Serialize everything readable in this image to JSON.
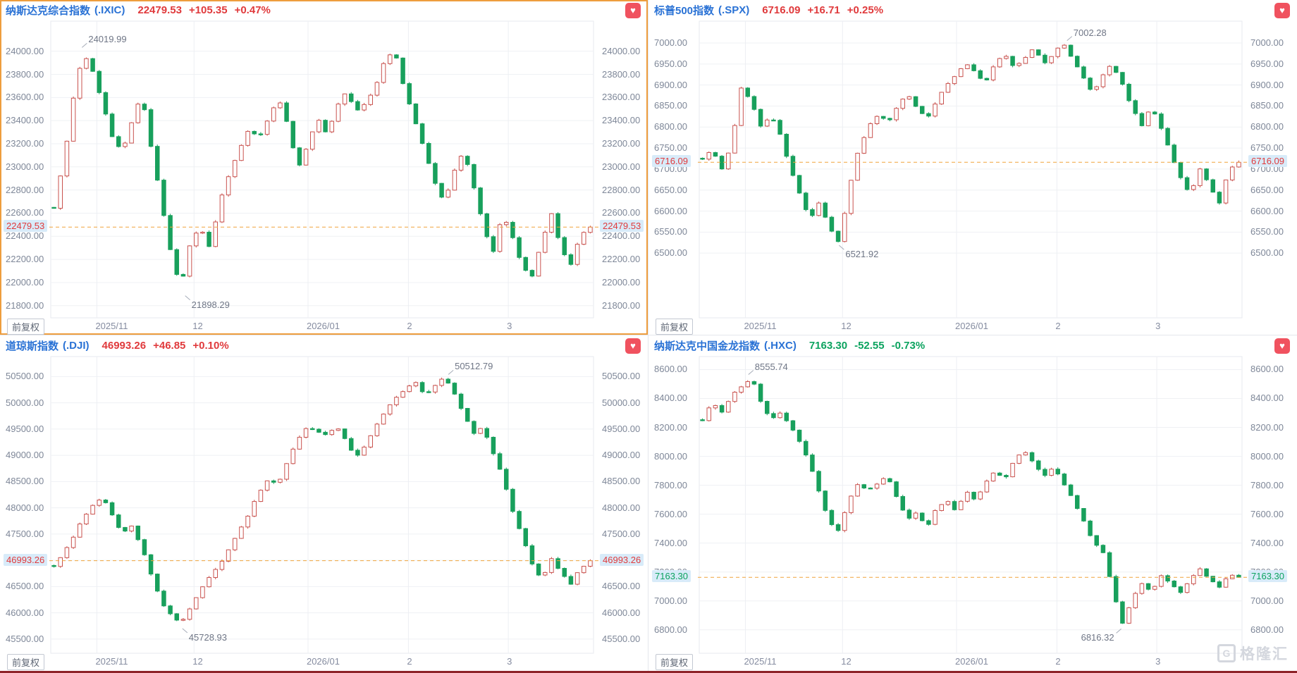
{
  "app": {
    "adjust_label": "前复权",
    "favorite_icon_glyph": "♥",
    "watermark": {
      "logo_letter": "G",
      "text": "格隆汇"
    }
  },
  "colors": {
    "title_blue": "#2A72D5",
    "up_red": "#E03A3C",
    "down_green": "#0CA35F",
    "candle_up_outline": "#C9524E",
    "candle_down_fill": "#18A05C",
    "dashed_line_orange": "#F0A43C",
    "tag_background": "#D8EBF9",
    "selected_border_orange": "#EE9D3D",
    "axis_label_gray": "#7E8798",
    "heart_button": "#F0525F",
    "bottom_strip": "#8E2329"
  },
  "panels": [
    {
      "title": "纳斯达克综合指数",
      "code": "(.IXIC)",
      "price": "22479.53",
      "change": "+105.35",
      "change_pct": "+0.47%",
      "direction": "up"
    },
    {
      "title": "标普500指数",
      "code": "(.SPX)",
      "price": "6716.09",
      "change": "+16.71",
      "change_pct": "+0.25%",
      "direction": "up"
    },
    {
      "title": "道琼斯指数",
      "code": "(.DJI)",
      "price": "46993.26",
      "change": "+46.85",
      "change_pct": "+0.10%",
      "direction": "up"
    },
    {
      "title": "纳斯达克中国金龙指数",
      "code": "(.HXC)",
      "price": "7163.30",
      "change": "-52.55",
      "change_pct": "-0.73%",
      "direction": "down"
    }
  ],
  "chart_data": [
    {
      "name": "纳斯达克综合指数",
      "symbol": ".IXIC",
      "type": "candlestick",
      "adjust": "前复权",
      "last": 22479.53,
      "y_axis": {
        "top_value": 24260,
        "bottom_value": 21695,
        "tick_step": 200,
        "ticks": [
          24000,
          23800,
          23600,
          23400,
          23200,
          23000,
          22800,
          22600,
          22400,
          22200,
          22000,
          21800
        ]
      },
      "x_ticks": [
        {
          "label": "2025/11",
          "fx": 0.085
        },
        {
          "label": "12",
          "fx": 0.264
        },
        {
          "label": "2026/01",
          "fx": 0.474
        },
        {
          "label": "2",
          "fx": 0.659
        },
        {
          "label": "3",
          "fx": 0.843
        }
      ],
      "annotations": [
        {
          "label": "24019.99",
          "value": 24019.99,
          "fx": 0.055,
          "kind": "high",
          "side": "right"
        },
        {
          "label": "21898.29",
          "value": 21898.29,
          "fx": 0.245,
          "kind": "low",
          "side": "right"
        }
      ],
      "closes_approx": [
        22650,
        23050,
        23600,
        23990,
        23820,
        23550,
        23250,
        23120,
        23400,
        23620,
        23150,
        22700,
        22250,
        21950,
        22350,
        22480,
        22300,
        22700,
        22950,
        23150,
        23320,
        23250,
        23420,
        23600,
        23350,
        22980,
        23180,
        23420,
        23280,
        23520,
        23650,
        23480,
        23560,
        23700,
        23950,
        23980,
        23650,
        23400,
        23150,
        22880,
        22700,
        22950,
        23150,
        22850,
        22500,
        22250,
        22600,
        22400,
        22150,
        22050,
        22350,
        22600,
        22300,
        22150,
        22420,
        22479.53
      ]
    },
    {
      "name": "标普500指数",
      "symbol": ".SPX",
      "type": "candlestick",
      "adjust": "前复权",
      "last": 6716.09,
      "y_axis": {
        "top_value": 7052,
        "bottom_value": 6346,
        "tick_step": 50,
        "ticks": [
          7000,
          6950,
          6900,
          6850,
          6800,
          6750,
          6700,
          6650,
          6600,
          6550,
          6500
        ]
      },
      "x_ticks": [
        {
          "label": "2025/11",
          "fx": 0.085
        },
        {
          "label": "12",
          "fx": 0.264
        },
        {
          "label": "2026/01",
          "fx": 0.474
        },
        {
          "label": "2",
          "fx": 0.659
        },
        {
          "label": "3",
          "fx": 0.843
        }
      ],
      "annotations": [
        {
          "label": "7002.28",
          "value": 7002.28,
          "fx": 0.675,
          "kind": "high",
          "side": "right"
        },
        {
          "label": "6521.92",
          "value": 6521.92,
          "fx": 0.255,
          "kind": "low",
          "side": "right"
        }
      ],
      "closes_approx": [
        6725,
        6745,
        6700,
        6760,
        6895,
        6860,
        6800,
        6830,
        6780,
        6700,
        6640,
        6580,
        6620,
        6560,
        6523,
        6650,
        6745,
        6800,
        6830,
        6810,
        6850,
        6880,
        6845,
        6820,
        6860,
        6900,
        6925,
        6950,
        6930,
        6905,
        6950,
        6975,
        6940,
        6960,
        6990,
        6950,
        6975,
        7000,
        6960,
        6920,
        6880,
        6920,
        6950,
        6905,
        6850,
        6800,
        6850,
        6800,
        6740,
        6680,
        6640,
        6700,
        6660,
        6620,
        6700,
        6716.09
      ]
    },
    {
      "name": "道琼斯指数",
      "symbol": ".DJI",
      "type": "candlestick",
      "adjust": "前复权",
      "last": 46993.26,
      "y_axis": {
        "top_value": 50880,
        "bottom_value": 45230,
        "tick_step": 500,
        "ticks": [
          50500,
          50000,
          49500,
          49000,
          48500,
          48000,
          47500,
          47000,
          46500,
          46000,
          45500
        ]
      },
      "x_ticks": [
        {
          "label": "2025/11",
          "fx": 0.085
        },
        {
          "label": "12",
          "fx": 0.264
        },
        {
          "label": "2026/01",
          "fx": 0.474
        },
        {
          "label": "2",
          "fx": 0.659
        },
        {
          "label": "3",
          "fx": 0.843
        }
      ],
      "annotations": [
        {
          "label": "50512.79",
          "value": 50512.79,
          "fx": 0.73,
          "kind": "high",
          "side": "right"
        },
        {
          "label": "45728.93",
          "value": 45728.93,
          "fx": 0.24,
          "kind": "low",
          "side": "right"
        }
      ],
      "closes_approx": [
        46900,
        47150,
        47450,
        47800,
        48050,
        48200,
        47850,
        47500,
        47650,
        47250,
        46700,
        46200,
        45950,
        45800,
        46100,
        46450,
        46700,
        46900,
        47250,
        47550,
        47900,
        48300,
        48550,
        48450,
        48900,
        49300,
        49550,
        49450,
        49400,
        49550,
        49250,
        48950,
        49200,
        49550,
        49850,
        50100,
        50250,
        50400,
        50150,
        50300,
        50480,
        50200,
        49800,
        49400,
        49550,
        49050,
        48600,
        47950,
        47450,
        46950,
        46600,
        47050,
        46750,
        46550,
        46850,
        46993.26
      ]
    },
    {
      "name": "纳斯达克中国金龙指数",
      "symbol": ".HXC",
      "type": "candlestick",
      "adjust": "前复权",
      "last": 7163.3,
      "y_axis": {
        "top_value": 8690,
        "bottom_value": 6638,
        "tick_step": 200,
        "ticks": [
          8600,
          8400,
          8200,
          8000,
          7800,
          7600,
          7400,
          7200,
          7000,
          6800
        ]
      },
      "x_ticks": [
        {
          "label": "2025/11",
          "fx": 0.085
        },
        {
          "label": "12",
          "fx": 0.264
        },
        {
          "label": "2026/01",
          "fx": 0.474
        },
        {
          "label": "2",
          "fx": 0.659
        },
        {
          "label": "3",
          "fx": 0.843
        }
      ],
      "annotations": [
        {
          "label": "8555.74",
          "value": 8555.74,
          "fx": 0.088,
          "kind": "high",
          "side": "right"
        },
        {
          "label": "6816.32",
          "value": 6816.32,
          "fx": 0.78,
          "kind": "low",
          "side": "left"
        }
      ],
      "closes_approx": [
        8250,
        8380,
        8300,
        8420,
        8480,
        8545,
        8380,
        8250,
        8300,
        8220,
        8100,
        7950,
        7750,
        7550,
        7480,
        7700,
        7820,
        7760,
        7820,
        7860,
        7700,
        7560,
        7620,
        7500,
        7640,
        7700,
        7620,
        7760,
        7700,
        7820,
        7900,
        7840,
        7980,
        8040,
        7950,
        7860,
        7920,
        7820,
        7700,
        7560,
        7420,
        7350,
        7100,
        6830,
        7000,
        7120,
        7060,
        7180,
        7120,
        7050,
        7150,
        7220,
        7150,
        7100,
        7180,
        7163.3
      ]
    }
  ]
}
